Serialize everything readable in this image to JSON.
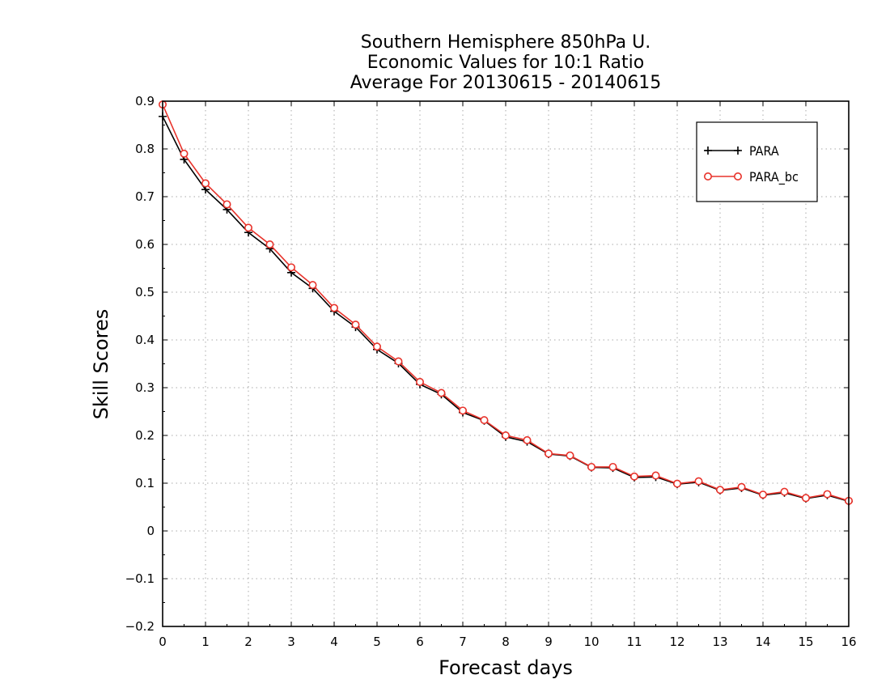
{
  "chart_data": {
    "type": "line",
    "title": [
      "Southern Hemisphere 850hPa U.",
      "Economic Values for 10:1 Ratio",
      "Average For 20130615 - 20140615"
    ],
    "xlabel": "Forecast days",
    "ylabel": "Skill Scores",
    "xlim": [
      0,
      16
    ],
    "ylim": [
      -0.2,
      0.9
    ],
    "xticks": [
      0,
      1,
      2,
      3,
      4,
      5,
      6,
      7,
      8,
      9,
      10,
      11,
      12,
      13,
      14,
      15,
      16
    ],
    "xtick_labels": [
      "0",
      "1",
      "2",
      "3",
      "4",
      "5",
      "6",
      "7",
      "8",
      "9",
      "10",
      "11",
      "12",
      "13",
      "14",
      "15",
      "16"
    ],
    "yticks": [
      -0.2,
      -0.1,
      0,
      0.1,
      0.2,
      0.3,
      0.4,
      0.5,
      0.6,
      0.7,
      0.8,
      0.9
    ],
    "ytick_labels": [
      "−0.2",
      "−0.1",
      "0",
      "0.1",
      "0.2",
      "0.3",
      "0.4",
      "0.5",
      "0.6",
      "0.7",
      "0.8",
      "0.9"
    ],
    "grid": true,
    "legend_position": "top-right",
    "x": [
      0,
      0.5,
      1,
      1.5,
      2,
      2.5,
      3,
      3.5,
      4,
      4.5,
      5,
      5.5,
      6,
      6.5,
      7,
      7.5,
      8,
      8.5,
      9,
      9.5,
      10,
      10.5,
      11,
      11.5,
      12,
      12.5,
      13,
      13.5,
      14,
      14.5,
      15,
      15.5,
      16
    ],
    "series": [
      {
        "name": "PARA",
        "color": "#000000",
        "marker": "plus",
        "values": [
          0.868,
          0.778,
          0.715,
          0.673,
          0.625,
          0.591,
          0.541,
          0.508,
          0.46,
          0.427,
          0.38,
          0.351,
          0.307,
          0.286,
          0.248,
          0.231,
          0.197,
          0.187,
          0.161,
          0.157,
          0.133,
          0.132,
          0.112,
          0.113,
          0.098,
          0.102,
          0.085,
          0.09,
          0.075,
          0.08,
          0.068,
          0.075,
          0.062
        ]
      },
      {
        "name": "PARA_bc",
        "color": "#e8332b",
        "marker": "circle",
        "values": [
          0.893,
          0.79,
          0.728,
          0.684,
          0.635,
          0.6,
          0.552,
          0.515,
          0.467,
          0.432,
          0.386,
          0.355,
          0.312,
          0.289,
          0.252,
          0.232,
          0.2,
          0.19,
          0.162,
          0.158,
          0.134,
          0.134,
          0.114,
          0.116,
          0.099,
          0.104,
          0.086,
          0.092,
          0.076,
          0.082,
          0.069,
          0.077,
          0.063
        ]
      }
    ]
  }
}
